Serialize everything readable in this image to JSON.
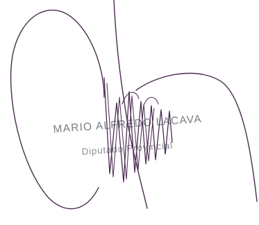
{
  "stamp": {
    "name": "MARIO ALFREDO LACAVA",
    "title": "Diputado Provincial"
  },
  "colors": {
    "ink": "#4a2a4f",
    "stamp": "#7a7f86"
  }
}
